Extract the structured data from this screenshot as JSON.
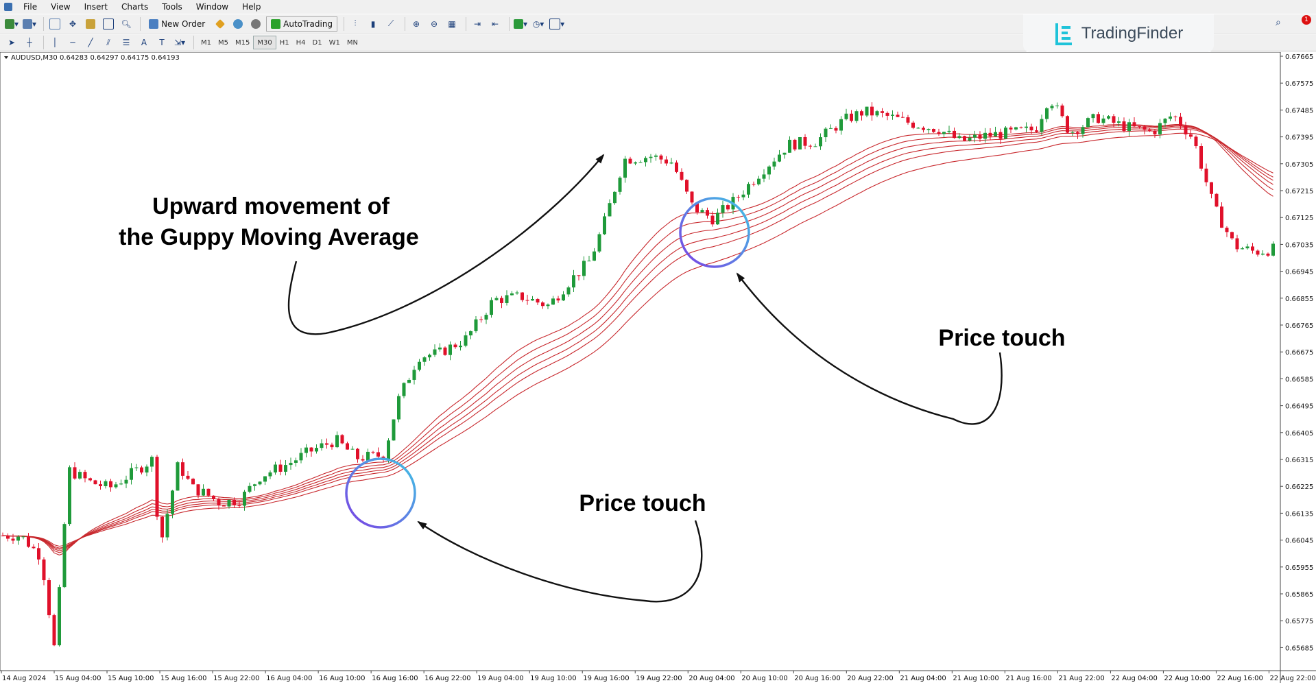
{
  "menu": [
    "File",
    "View",
    "Insert",
    "Charts",
    "Tools",
    "Window",
    "Help"
  ],
  "toolbar": {
    "new_order_label": "New Order",
    "autotrading_label": "AutoTrading",
    "timeframes": [
      "M1",
      "M5",
      "M15",
      "M30",
      "H1",
      "H4",
      "D1",
      "W1",
      "MN"
    ],
    "active_timeframe": "M30"
  },
  "brand": {
    "name": "TradingFinder"
  },
  "notification_count": "1",
  "chart": {
    "info_line": "AUDUSD,M30  0.64283 0.64297 0.64175 0.64193",
    "price_ticks": [
      "0.67665",
      "0.67575",
      "0.67485",
      "0.67395",
      "0.67305",
      "0.67215",
      "0.67125",
      "0.67035",
      "0.66945",
      "0.66855",
      "0.66765",
      "0.66675",
      "0.66585",
      "0.66495",
      "0.66405",
      "0.66315",
      "0.66225",
      "0.66135",
      "0.66045",
      "0.65955",
      "0.65865",
      "0.65775",
      "0.65685"
    ],
    "time_ticks": [
      "14 Aug 2024",
      "15 Aug 04:00",
      "15 Aug 10:00",
      "15 Aug 16:00",
      "15 Aug 22:00",
      "16 Aug 04:00",
      "16 Aug 10:00",
      "16 Aug 16:00",
      "16 Aug 22:00",
      "19 Aug 04:00",
      "19 Aug 10:00",
      "19 Aug 16:00",
      "19 Aug 22:00",
      "20 Aug 04:00",
      "20 Aug 10:00",
      "20 Aug 16:00",
      "20 Aug 22:00",
      "21 Aug 04:00",
      "21 Aug 10:00",
      "21 Aug 16:00",
      "21 Aug 22:00",
      "22 Aug 04:00",
      "22 Aug 10:00",
      "22 Aug 16:00",
      "22 Aug 22:00"
    ],
    "annotations": {
      "upward_line1": "Upward movement of",
      "upward_line2": "the Guppy Moving Average",
      "price_touch_1": "Price touch",
      "price_touch_2": "Price touch"
    },
    "colors": {
      "bull": "#1f9a3a",
      "bear": "#e0102a",
      "gma": "#c8282d",
      "circle_start": "#7b3fe4",
      "circle_end": "#3fc4e4"
    }
  }
}
